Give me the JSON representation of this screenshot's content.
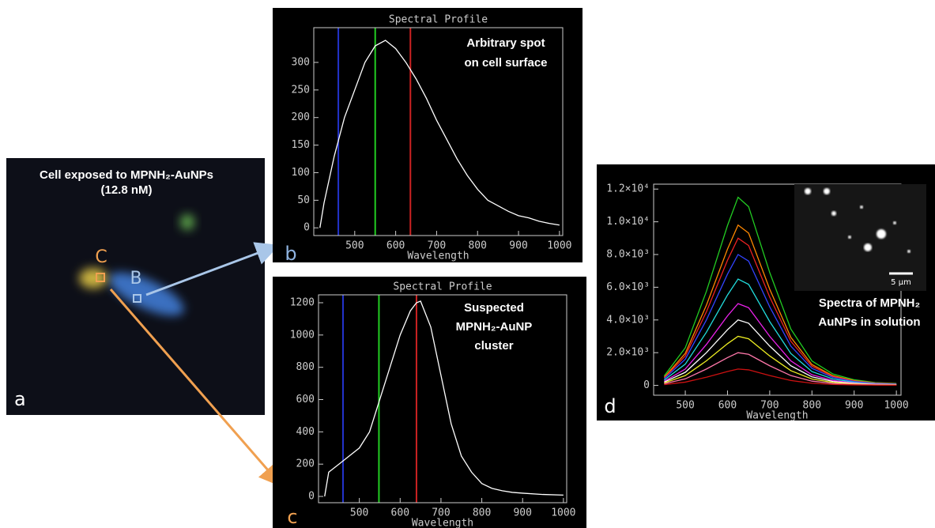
{
  "chart_data": [
    {
      "type": "line",
      "panel_label": "b",
      "title": "Spectral Profile",
      "x_label": "Wavelength",
      "annotation": [
        "Arbitrary spot",
        "on cell surface"
      ],
      "x": [
        415,
        425,
        450,
        475,
        500,
        525,
        550,
        575,
        600,
        625,
        650,
        675,
        700,
        725,
        750,
        775,
        800,
        825,
        850,
        875,
        900,
        925,
        950,
        975,
        1000
      ],
      "values": [
        0,
        45,
        130,
        200,
        250,
        300,
        330,
        340,
        325,
        300,
        270,
        235,
        195,
        160,
        125,
        95,
        70,
        50,
        40,
        30,
        22,
        18,
        12,
        8,
        5
      ],
      "color": "#ffffff",
      "markers": [
        {
          "x": 460,
          "color": "#2233cc"
        },
        {
          "x": 550,
          "color": "#22cc22"
        },
        {
          "x": 636,
          "color": "#cc2222"
        }
      ],
      "xlim": [
        400,
        1008
      ],
      "ylim": [
        -14,
        363
      ],
      "xticks": [
        500,
        600,
        700,
        800,
        900,
        1000
      ],
      "yticks": [
        0,
        50,
        100,
        150,
        200,
        250,
        300
      ]
    },
    {
      "type": "line",
      "panel_label": "c",
      "title": "Spectral Profile",
      "x_label": "Wavelength",
      "annotation": [
        "Suspected",
        "MPNH₂-AuNP",
        "cluster"
      ],
      "x": [
        415,
        425,
        450,
        475,
        500,
        525,
        550,
        575,
        600,
        625,
        640,
        650,
        675,
        700,
        725,
        750,
        775,
        800,
        825,
        850,
        875,
        900,
        950,
        1000
      ],
      "values": [
        0,
        150,
        200,
        250,
        300,
        400,
        600,
        800,
        1000,
        1150,
        1200,
        1210,
        1050,
        750,
        450,
        250,
        150,
        80,
        50,
        35,
        25,
        20,
        12,
        8
      ],
      "color": "#ffffff",
      "markers": [
        {
          "x": 460,
          "color": "#2233cc"
        },
        {
          "x": 548,
          "color": "#22cc22"
        },
        {
          "x": 640,
          "color": "#cc2222"
        }
      ],
      "xlim": [
        400,
        1008
      ],
      "ylim": [
        -39,
        1249
      ],
      "xticks": [
        500,
        600,
        700,
        800,
        900,
        1000
      ],
      "yticks": [
        0,
        200,
        400,
        600,
        800,
        1000,
        1200
      ]
    },
    {
      "type": "multiline",
      "panel_label": "d",
      "x_label": "Wavelength",
      "inset": {
        "scale_bar": "5 μm",
        "caption": [
          "Spectra of MPNH₂",
          "AuNPs in solution"
        ]
      },
      "x": [
        450,
        500,
        550,
        600,
        625,
        650,
        700,
        750,
        800,
        850,
        900,
        950,
        1000
      ],
      "series": [
        {
          "color": "#22cc22",
          "values": [
            575,
            2300,
            5750,
            9775,
            11500,
            10925,
            6900,
            3450,
            1495,
            690,
            345,
            173,
            115
          ]
        },
        {
          "color": "#ff8800",
          "values": [
            490,
            1960,
            4900,
            8330,
            9800,
            9310,
            5880,
            2940,
            1274,
            588,
            294,
            147,
            98
          ]
        },
        {
          "color": "#ee2222",
          "values": [
            450,
            1800,
            4500,
            7650,
            9000,
            8550,
            5400,
            2700,
            1170,
            540,
            270,
            135,
            90
          ]
        },
        {
          "color": "#3344ff",
          "values": [
            400,
            1600,
            4000,
            6800,
            8000,
            7600,
            4800,
            2400,
            1040,
            480,
            240,
            120,
            80
          ]
        },
        {
          "color": "#22dddd",
          "values": [
            325,
            1300,
            3250,
            5525,
            6500,
            6175,
            3900,
            1950,
            845,
            390,
            195,
            98,
            65
          ]
        },
        {
          "color": "#ee22ee",
          "values": [
            250,
            1000,
            2500,
            4250,
            5000,
            4750,
            3000,
            1500,
            650,
            300,
            150,
            75,
            50
          ]
        },
        {
          "color": "#ffffff",
          "values": [
            200,
            800,
            2000,
            3400,
            4000,
            3800,
            2400,
            1200,
            520,
            240,
            120,
            60,
            40
          ]
        },
        {
          "color": "#eeee22",
          "values": [
            150,
            600,
            1500,
            2550,
            3000,
            2850,
            1800,
            900,
            390,
            180,
            90,
            45,
            30
          ]
        },
        {
          "color": "#ff77aa",
          "values": [
            100,
            400,
            1000,
            1700,
            2000,
            1900,
            1200,
            600,
            260,
            120,
            60,
            30,
            20
          ]
        },
        {
          "color": "#cc1111",
          "values": [
            50,
            200,
            500,
            850,
            1000,
            950,
            600,
            300,
            130,
            60,
            30,
            15,
            10
          ]
        }
      ],
      "xlim": [
        425,
        1011
      ],
      "ylim": [
        -600,
        12300
      ],
      "xticks": [
        500,
        600,
        700,
        800,
        900,
        1000
      ],
      "yticks": [
        0,
        {
          "value": 2000,
          "label": "2.0×10³"
        },
        {
          "value": 4000,
          "label": "4.0×10³"
        },
        {
          "value": 6000,
          "label": "6.0×10³"
        },
        {
          "value": 8000,
          "label": "8.0×10³"
        },
        {
          "value": 10000,
          "label": "1.0×10⁴"
        },
        {
          "value": 12000,
          "label": "1.2×10⁴"
        }
      ]
    }
  ],
  "panel_a": {
    "panel_label": "a",
    "caption": [
      "Cell exposed to MPNH₂-AuNPs",
      "(12.8 nM)"
    ],
    "spot_labels": [
      "C",
      "B"
    ]
  }
}
